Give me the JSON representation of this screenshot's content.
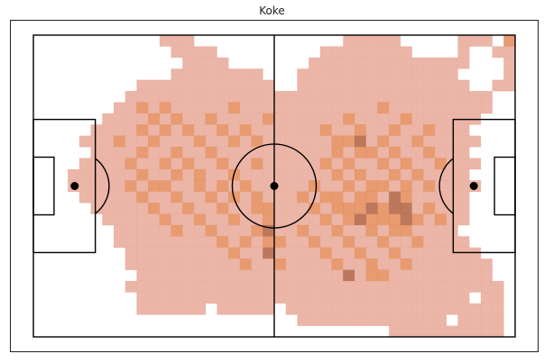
{
  "chart_data": {
    "type": "heatmap",
    "title": "Koke",
    "colormap": [
      "#e8a898",
      "#e07a40"
    ],
    "pitch": {
      "length": 105,
      "width": 68,
      "line_color": "#000000",
      "background": "#ffffff",
      "grid_cols": 42,
      "grid_rows": 27
    },
    "cells": [
      [
        0,
        0,
        0,
        0,
        0,
        0,
        0,
        0,
        0,
        0,
        0,
        1,
        1,
        1,
        0,
        0,
        0,
        0,
        0,
        0,
        0,
        0,
        0,
        0,
        0,
        0,
        0,
        1,
        1,
        1,
        1,
        1,
        0,
        0,
        0,
        0,
        0,
        1,
        1,
        1,
        0,
        2
      ],
      [
        0,
        0,
        0,
        0,
        0,
        0,
        0,
        0,
        0,
        0,
        0,
        0,
        1,
        1,
        1,
        1,
        0,
        0,
        0,
        0,
        0,
        0,
        0,
        0,
        0,
        1,
        1,
        1,
        1,
        1,
        1,
        1,
        1,
        0,
        0,
        0,
        0,
        1,
        0,
        0,
        1,
        1
      ],
      [
        0,
        0,
        0,
        0,
        0,
        0,
        0,
        0,
        0,
        0,
        0,
        0,
        0,
        1,
        1,
        1,
        1,
        0,
        0,
        0,
        0,
        0,
        0,
        0,
        1,
        1,
        1,
        1,
        1,
        1,
        1,
        1,
        1,
        1,
        1,
        1,
        1,
        1,
        0,
        0,
        0,
        1
      ],
      [
        0,
        0,
        0,
        0,
        0,
        0,
        0,
        0,
        0,
        0,
        0,
        0,
        1,
        1,
        1,
        1,
        1,
        1,
        1,
        1,
        0,
        0,
        0,
        1,
        1,
        1,
        1,
        1,
        1,
        1,
        1,
        1,
        1,
        1,
        1,
        1,
        1,
        0,
        0,
        0,
        0,
        1
      ],
      [
        0,
        0,
        0,
        0,
        0,
        0,
        0,
        0,
        0,
        1,
        1,
        1,
        1,
        1,
        1,
        1,
        1,
        1,
        1,
        1,
        1,
        0,
        0,
        1,
        1,
        1,
        1,
        1,
        1,
        1,
        1,
        1,
        1,
        1,
        1,
        1,
        1,
        1,
        0,
        0,
        1,
        1
      ],
      [
        0,
        0,
        0,
        0,
        0,
        0,
        0,
        0,
        1,
        1,
        1,
        1,
        1,
        1,
        1,
        1,
        1,
        1,
        1,
        1,
        1,
        1,
        1,
        1,
        1,
        1,
        1,
        1,
        1,
        1,
        1,
        1,
        1,
        1,
        1,
        1,
        1,
        1,
        1,
        1,
        0,
        0
      ],
      [
        0,
        0,
        0,
        0,
        0,
        0,
        0,
        1,
        1,
        2,
        1,
        2,
        1,
        1,
        1,
        1,
        1,
        2,
        1,
        1,
        1,
        1,
        1,
        1,
        1,
        1,
        1,
        1,
        1,
        1,
        2,
        1,
        1,
        1,
        1,
        1,
        1,
        1,
        1,
        1,
        0,
        0
      ],
      [
        0,
        0,
        0,
        0,
        0,
        0,
        1,
        1,
        1,
        1,
        2,
        1,
        2,
        1,
        1,
        2,
        1,
        1,
        1,
        1,
        2,
        1,
        1,
        1,
        1,
        1,
        1,
        2,
        1,
        1,
        1,
        1,
        2,
        1,
        1,
        1,
        1,
        1,
        1,
        0,
        0,
        0
      ],
      [
        0,
        0,
        0,
        0,
        0,
        1,
        1,
        1,
        1,
        2,
        1,
        2,
        1,
        2,
        1,
        1,
        2,
        1,
        2,
        1,
        1,
        1,
        1,
        1,
        1,
        2,
        1,
        1,
        2,
        1,
        1,
        2,
        1,
        1,
        2,
        1,
        1,
        1,
        0,
        0,
        0,
        0
      ],
      [
        0,
        0,
        0,
        0,
        1,
        1,
        1,
        2,
        1,
        1,
        2,
        1,
        1,
        1,
        2,
        1,
        1,
        2,
        1,
        2,
        1,
        1,
        1,
        1,
        1,
        1,
        2,
        2,
        3,
        1,
        2,
        1,
        1,
        2,
        1,
        1,
        1,
        1,
        1,
        0,
        0,
        0
      ],
      [
        0,
        0,
        0,
        0,
        0,
        1,
        1,
        1,
        1,
        2,
        1,
        1,
        2,
        1,
        1,
        2,
        1,
        1,
        1,
        1,
        1,
        1,
        1,
        1,
        1,
        1,
        2,
        1,
        2,
        2,
        1,
        2,
        1,
        1,
        2,
        1,
        1,
        1,
        0,
        0,
        0,
        0
      ],
      [
        0,
        0,
        0,
        0,
        1,
        1,
        1,
        1,
        2,
        1,
        1,
        2,
        1,
        2,
        1,
        1,
        2,
        1,
        1,
        2,
        1,
        1,
        1,
        1,
        1,
        2,
        1,
        2,
        1,
        1,
        2,
        1,
        2,
        1,
        1,
        2,
        1,
        1,
        1,
        0,
        0,
        0
      ],
      [
        0,
        0,
        0,
        1,
        1,
        1,
        1,
        1,
        1,
        2,
        1,
        1,
        2,
        1,
        2,
        1,
        1,
        2,
        1,
        1,
        1,
        1,
        1,
        1,
        1,
        1,
        2,
        1,
        2,
        1,
        1,
        2,
        1,
        2,
        1,
        1,
        1,
        1,
        0,
        0,
        0,
        0
      ],
      [
        0,
        0,
        0,
        1,
        1,
        1,
        1,
        1,
        2,
        1,
        2,
        2,
        1,
        1,
        2,
        1,
        2,
        1,
        2,
        1,
        1,
        1,
        1,
        1,
        2,
        1,
        1,
        2,
        1,
        2,
        2,
        1,
        2,
        1,
        2,
        1,
        1,
        1,
        1,
        0,
        0,
        0
      ],
      [
        0,
        0,
        0,
        0,
        1,
        1,
        1,
        1,
        1,
        2,
        1,
        1,
        2,
        1,
        1,
        2,
        1,
        2,
        1,
        2,
        1,
        1,
        1,
        2,
        1,
        2,
        2,
        1,
        2,
        2,
        1,
        3,
        2,
        1,
        1,
        1,
        1,
        1,
        0,
        0,
        0,
        0
      ],
      [
        0,
        0,
        0,
        0,
        0,
        1,
        1,
        1,
        1,
        1,
        2,
        1,
        1,
        2,
        1,
        1,
        2,
        1,
        1,
        2,
        2,
        1,
        1,
        1,
        2,
        1,
        2,
        2,
        2,
        3,
        2,
        3,
        3,
        1,
        2,
        1,
        1,
        1,
        0,
        0,
        0,
        0
      ],
      [
        0,
        0,
        0,
        0,
        0,
        0,
        1,
        1,
        1,
        1,
        1,
        2,
        1,
        1,
        2,
        1,
        1,
        2,
        1,
        1,
        2,
        1,
        1,
        1,
        1,
        2,
        1,
        2,
        3,
        2,
        2,
        2,
        3,
        2,
        1,
        2,
        1,
        1,
        0,
        0,
        0,
        0
      ],
      [
        0,
        0,
        0,
        0,
        0,
        0,
        0,
        1,
        1,
        1,
        1,
        1,
        2,
        1,
        1,
        2,
        1,
        1,
        1,
        2,
        3,
        1,
        1,
        2,
        1,
        1,
        2,
        1,
        1,
        2,
        1,
        2,
        2,
        1,
        1,
        1,
        1,
        0,
        0,
        0,
        0,
        0
      ],
      [
        0,
        0,
        0,
        0,
        0,
        0,
        0,
        1,
        1,
        1,
        1,
        1,
        1,
        1,
        1,
        1,
        2,
        1,
        2,
        1,
        2,
        2,
        1,
        1,
        2,
        1,
        1,
        2,
        1,
        1,
        2,
        1,
        1,
        2,
        1,
        1,
        1,
        1,
        0,
        0,
        0,
        0
      ],
      [
        0,
        0,
        0,
        0,
        0,
        0,
        0,
        0,
        1,
        1,
        1,
        1,
        1,
        1,
        1,
        1,
        1,
        2,
        1,
        1,
        3,
        1,
        1,
        1,
        1,
        2,
        1,
        1,
        2,
        1,
        1,
        2,
        1,
        1,
        1,
        1,
        1,
        1,
        1,
        0,
        0,
        0
      ],
      [
        0,
        0,
        0,
        0,
        0,
        0,
        0,
        0,
        1,
        1,
        1,
        1,
        1,
        1,
        1,
        1,
        1,
        1,
        2,
        1,
        1,
        2,
        1,
        1,
        1,
        1,
        2,
        1,
        1,
        2,
        1,
        1,
        2,
        1,
        1,
        1,
        1,
        1,
        1,
        1,
        0,
        0
      ],
      [
        0,
        0,
        0,
        0,
        0,
        0,
        0,
        0,
        0,
        1,
        1,
        1,
        1,
        1,
        1,
        1,
        1,
        1,
        1,
        1,
        1,
        1,
        1,
        1,
        1,
        1,
        1,
        3,
        1,
        2,
        2,
        1,
        1,
        1,
        1,
        1,
        1,
        1,
        1,
        1,
        0,
        0
      ],
      [
        0,
        0,
        0,
        0,
        0,
        0,
        0,
        0,
        1,
        1,
        1,
        1,
        1,
        1,
        1,
        1,
        1,
        1,
        1,
        1,
        1,
        1,
        1,
        1,
        1,
        1,
        1,
        1,
        1,
        1,
        1,
        1,
        1,
        1,
        1,
        1,
        1,
        1,
        1,
        1,
        1,
        0
      ],
      [
        0,
        0,
        0,
        0,
        0,
        0,
        0,
        0,
        0,
        1,
        1,
        1,
        1,
        1,
        1,
        1,
        1,
        1,
        1,
        1,
        1,
        1,
        1,
        1,
        1,
        1,
        1,
        1,
        1,
        1,
        1,
        1,
        1,
        1,
        1,
        1,
        1,
        1,
        0,
        1,
        1,
        0
      ],
      [
        0,
        0,
        0,
        0,
        0,
        0,
        0,
        0,
        0,
        1,
        1,
        1,
        1,
        1,
        1,
        0,
        1,
        1,
        1,
        1,
        1,
        0,
        1,
        1,
        1,
        1,
        1,
        1,
        1,
        1,
        1,
        1,
        1,
        1,
        1,
        1,
        1,
        1,
        1,
        1,
        1,
        0
      ],
      [
        0,
        0,
        0,
        0,
        0,
        0,
        0,
        0,
        0,
        0,
        0,
        0,
        0,
        0,
        0,
        0,
        0,
        0,
        0,
        0,
        0,
        0,
        0,
        1,
        1,
        1,
        1,
        1,
        1,
        1,
        1,
        1,
        1,
        1,
        1,
        1,
        0,
        1,
        1,
        1,
        1,
        0
      ],
      [
        0,
        0,
        0,
        0,
        0,
        0,
        0,
        0,
        0,
        0,
        0,
        0,
        0,
        0,
        0,
        0,
        0,
        0,
        0,
        0,
        0,
        0,
        0,
        0,
        0,
        0,
        0,
        0,
        0,
        0,
        0,
        1,
        1,
        1,
        1,
        1,
        1,
        1,
        1,
        1,
        1,
        0
      ]
    ]
  }
}
